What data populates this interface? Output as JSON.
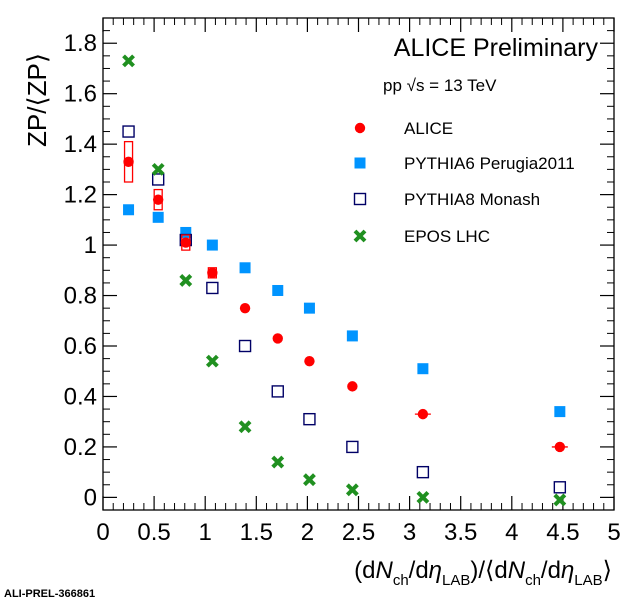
{
  "chart_data": {
    "type": "scatter",
    "title": "ALICE Preliminary",
    "subtitle": "pp √s = 13 TeV",
    "xlabel": "(dN_ch/dη_LAB)/⟨dN_ch/dη_LAB⟩",
    "ylabel": "ZP/⟨ZP⟩",
    "xlim": [
      0,
      5
    ],
    "ylim": [
      -0.05,
      1.9
    ],
    "x_ticks": [
      "0",
      "0.5",
      "1",
      "1.5",
      "2",
      "2.5",
      "3",
      "3.5",
      "4",
      "4.5",
      "5"
    ],
    "y_ticks": [
      "0",
      "0.2",
      "0.4",
      "0.6",
      "0.8",
      "1",
      "1.2",
      "1.4",
      "1.6",
      "1.8"
    ],
    "grid": false,
    "legend_position": "top-right",
    "footer": "ALI-PREL-366861",
    "series": [
      {
        "name": "ALICE",
        "marker": "filled-circle",
        "color": "#ff0000",
        "x": [
          0.25,
          0.54,
          0.81,
          1.07,
          1.39,
          1.71,
          2.02,
          2.44,
          3.13,
          4.47
        ],
        "y": [
          1.33,
          1.18,
          1.01,
          0.89,
          0.75,
          0.63,
          0.54,
          0.44,
          0.33,
          0.2
        ],
        "syst_errors": [
          0.08,
          0.04,
          0.03,
          0.02,
          0.0,
          0.0,
          0.0,
          0.0,
          0.0,
          0.0
        ]
      },
      {
        "name": "PYTHIA6 Perugia2011",
        "marker": "filled-square",
        "color": "#0094ff",
        "x": [
          0.25,
          0.54,
          0.81,
          1.07,
          1.39,
          1.71,
          2.02,
          2.44,
          3.13,
          4.47
        ],
        "y": [
          1.14,
          1.11,
          1.05,
          1.0,
          0.91,
          0.82,
          0.75,
          0.64,
          0.51,
          0.34
        ]
      },
      {
        "name": "PYTHIA8 Monash",
        "marker": "open-square",
        "color": "#000066",
        "x": [
          0.25,
          0.54,
          0.81,
          1.07,
          1.39,
          1.71,
          2.02,
          2.44,
          3.13,
          4.47
        ],
        "y": [
          1.45,
          1.26,
          1.02,
          0.83,
          0.6,
          0.42,
          0.31,
          0.2,
          0.1,
          0.04
        ]
      },
      {
        "name": "EPOS LHC",
        "marker": "x-cross",
        "color": "#209020",
        "x": [
          0.25,
          0.54,
          0.81,
          1.07,
          1.39,
          1.71,
          2.02,
          2.44,
          3.13,
          4.47
        ],
        "y": [
          1.73,
          1.3,
          0.86,
          0.54,
          0.28,
          0.14,
          0.07,
          0.03,
          0.0,
          -0.01
        ]
      }
    ]
  }
}
